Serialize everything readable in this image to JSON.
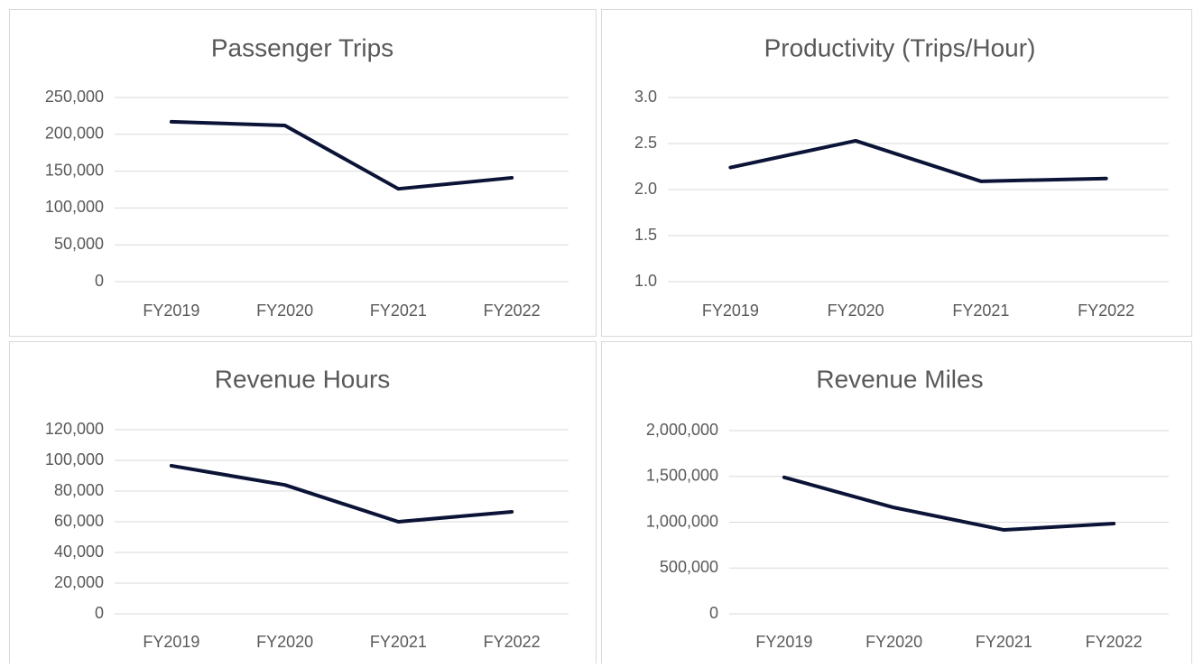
{
  "chart_data": [
    {
      "type": "line",
      "title": "Passenger Trips",
      "categories": [
        "FY2019",
        "FY2020",
        "FY2021",
        "FY2022"
      ],
      "series": [
        {
          "name": "Passenger Trips",
          "color": "#0b1437",
          "values": [
            217000,
            212000,
            126000,
            141000
          ]
        }
      ],
      "ylim": [
        0,
        250000
      ],
      "yticks": [
        0,
        {
          "value": 50000,
          "label": "50,000"
        },
        {
          "value": 100000,
          "label": "100,000"
        },
        {
          "value": 150000,
          "label": "150,000"
        },
        {
          "value": 200000,
          "label": "200,000"
        },
        {
          "value": 250000,
          "label": "250,000"
        }
      ],
      "grid": true
    },
    {
      "type": "line",
      "title": "Productivity (Trips/Hour)",
      "categories": [
        "FY2019",
        "FY2020",
        "FY2021",
        "FY2022"
      ],
      "series": [
        {
          "name": "Productivity (Trips/Hour)",
          "color": "#0b1437",
          "values": [
            2.24,
            2.53,
            2.09,
            2.12
          ]
        }
      ],
      "ylim": [
        1,
        3
      ],
      "yticks": [
        {
          "value": 1,
          "label": "1.0"
        },
        1.5,
        {
          "value": 2,
          "label": "2.0"
        },
        2.5,
        {
          "value": 3,
          "label": "3.0"
        }
      ],
      "grid": true
    },
    {
      "type": "line",
      "title": "Revenue Hours",
      "categories": [
        "FY2019",
        "FY2020",
        "FY2021",
        "FY2022"
      ],
      "series": [
        {
          "name": "Revenue Hours",
          "color": "#0b1437",
          "values": [
            96500,
            84000,
            60000,
            66500
          ]
        }
      ],
      "ylim": [
        0,
        120000
      ],
      "yticks": [
        0,
        {
          "value": 20000,
          "label": "20,000"
        },
        {
          "value": 40000,
          "label": "40,000"
        },
        {
          "value": 60000,
          "label": "60,000"
        },
        {
          "value": 80000,
          "label": "80,000"
        },
        {
          "value": 100000,
          "label": "100,000"
        },
        {
          "value": 120000,
          "label": "120,000"
        }
      ],
      "grid": true
    },
    {
      "type": "line",
      "title": "Revenue Miles",
      "categories": [
        "FY2019",
        "FY2020",
        "FY2021",
        "FY2022"
      ],
      "series": [
        {
          "name": "Revenue Miles",
          "color": "#0b1437",
          "values": [
            1490000,
            1160000,
            916000,
            985000
          ]
        }
      ],
      "ylim": [
        0,
        2000000
      ],
      "yticks": [
        0,
        {
          "value": 500000,
          "label": "500,000"
        },
        {
          "value": 1000000,
          "label": "1,000,000"
        },
        {
          "value": 1500000,
          "label": "1,500,000"
        },
        {
          "value": 2000000,
          "label": "2,000,000"
        }
      ],
      "grid": true
    }
  ]
}
